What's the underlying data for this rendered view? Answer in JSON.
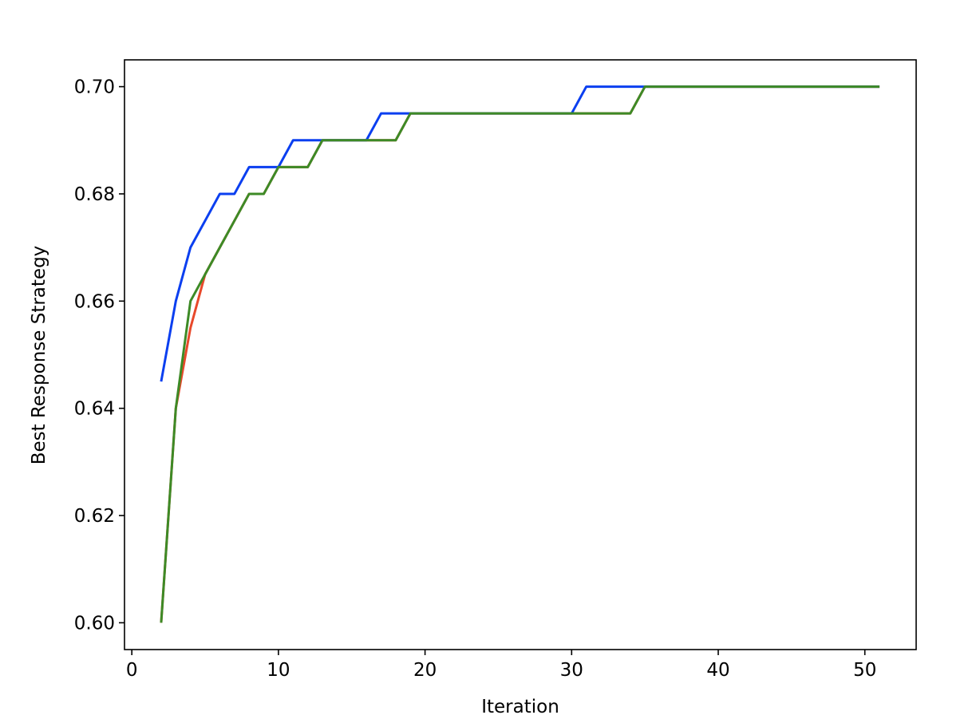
{
  "chart_data": {
    "type": "line",
    "title": "",
    "xlabel": "Iteration",
    "ylabel": "Best Response Strategy",
    "xlim": [
      -0.5,
      53.5
    ],
    "ylim": [
      0.595,
      0.705
    ],
    "xticks": [
      0,
      10,
      20,
      30,
      40,
      50
    ],
    "xtick_labels": [
      "0",
      "10",
      "20",
      "30",
      "40",
      "50"
    ],
    "yticks": [
      0.6,
      0.62,
      0.64,
      0.66,
      0.68,
      0.7
    ],
    "ytick_labels": [
      "0.60",
      "0.62",
      "0.64",
      "0.66",
      "0.68",
      "0.70"
    ],
    "grid": false,
    "series": [
      {
        "color": "#e8492b",
        "points": [
          [
            2,
            0.6
          ],
          [
            3,
            0.64
          ],
          [
            4,
            0.655
          ],
          [
            5,
            0.665
          ],
          [
            6,
            0.67
          ],
          [
            7,
            0.675
          ],
          [
            8,
            0.68
          ],
          [
            9,
            0.68
          ],
          [
            10,
            0.685
          ],
          [
            11,
            0.685
          ],
          [
            12,
            0.685
          ],
          [
            13,
            0.69
          ],
          [
            14,
            0.69
          ],
          [
            15,
            0.69
          ],
          [
            16,
            0.69
          ],
          [
            17,
            0.69
          ],
          [
            18,
            0.69
          ],
          [
            19,
            0.695
          ],
          [
            20,
            0.695
          ],
          [
            25,
            0.695
          ],
          [
            30,
            0.695
          ],
          [
            34,
            0.695
          ],
          [
            35,
            0.7
          ],
          [
            40,
            0.7
          ],
          [
            45,
            0.7
          ],
          [
            51,
            0.7
          ]
        ]
      },
      {
        "color": "#0b3ff0",
        "points": [
          [
            2,
            0.645
          ],
          [
            3,
            0.66
          ],
          [
            4,
            0.67
          ],
          [
            5,
            0.675
          ],
          [
            6,
            0.68
          ],
          [
            7,
            0.68
          ],
          [
            8,
            0.685
          ],
          [
            9,
            0.685
          ],
          [
            10,
            0.685
          ],
          [
            11,
            0.69
          ],
          [
            12,
            0.69
          ],
          [
            13,
            0.69
          ],
          [
            14,
            0.69
          ],
          [
            15,
            0.69
          ],
          [
            16,
            0.69
          ],
          [
            17,
            0.695
          ],
          [
            18,
            0.695
          ],
          [
            19,
            0.695
          ],
          [
            20,
            0.695
          ],
          [
            25,
            0.695
          ],
          [
            30,
            0.695
          ],
          [
            31,
            0.7
          ],
          [
            32,
            0.7
          ],
          [
            35,
            0.7
          ],
          [
            40,
            0.7
          ],
          [
            45,
            0.7
          ],
          [
            51,
            0.7
          ]
        ]
      },
      {
        "color": "#3d8a26",
        "points": [
          [
            2,
            0.6
          ],
          [
            3,
            0.64
          ],
          [
            4,
            0.66
          ],
          [
            5,
            0.665
          ],
          [
            6,
            0.67
          ],
          [
            7,
            0.675
          ],
          [
            8,
            0.68
          ],
          [
            9,
            0.68
          ],
          [
            10,
            0.685
          ],
          [
            11,
            0.685
          ],
          [
            12,
            0.685
          ],
          [
            13,
            0.69
          ],
          [
            14,
            0.69
          ],
          [
            15,
            0.69
          ],
          [
            16,
            0.69
          ],
          [
            17,
            0.69
          ],
          [
            18,
            0.69
          ],
          [
            19,
            0.695
          ],
          [
            20,
            0.695
          ],
          [
            25,
            0.695
          ],
          [
            30,
            0.695
          ],
          [
            34,
            0.695
          ],
          [
            35,
            0.7
          ],
          [
            40,
            0.7
          ],
          [
            45,
            0.7
          ],
          [
            51,
            0.7
          ]
        ]
      }
    ]
  }
}
